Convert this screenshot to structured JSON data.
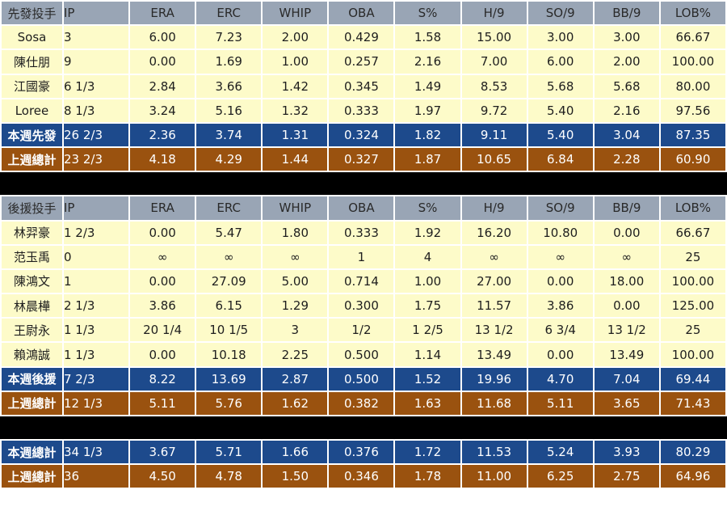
{
  "headers": {
    "starters": [
      "先發投手",
      "IP",
      "ERA",
      "ERC",
      "WHIP",
      "OBA",
      "S%",
      "H/9",
      "SO/9",
      "BB/9",
      "LOB%"
    ],
    "relievers": [
      "後援投手",
      "IP",
      "ERA",
      "ERC",
      "WHIP",
      "OBA",
      "S%",
      "H/9",
      "SO/9",
      "BB/9",
      "LOB%"
    ]
  },
  "starters": {
    "rows": [
      [
        "Sosa",
        "3",
        "6.00",
        "7.23",
        "2.00",
        "0.429",
        "1.58",
        "15.00",
        "3.00",
        "3.00",
        "66.67"
      ],
      [
        "陳仕朋",
        "9",
        "0.00",
        "1.69",
        "1.00",
        "0.257",
        "2.16",
        "7.00",
        "6.00",
        "2.00",
        "100.00"
      ],
      [
        "江國豪",
        "6 1/3",
        "2.84",
        "3.66",
        "1.42",
        "0.345",
        "1.49",
        "8.53",
        "5.68",
        "5.68",
        "80.00"
      ],
      [
        "Loree",
        "8 1/3",
        "3.24",
        "5.16",
        "1.32",
        "0.333",
        "1.97",
        "9.72",
        "5.40",
        "2.16",
        "97.56"
      ]
    ],
    "this_week": [
      "本週先發",
      "26 2/3",
      "2.36",
      "3.74",
      "1.31",
      "0.324",
      "1.82",
      "9.11",
      "5.40",
      "3.04",
      "87.35"
    ],
    "last_week": [
      "上週總計",
      "23 2/3",
      "4.18",
      "4.29",
      "1.44",
      "0.327",
      "1.87",
      "10.65",
      "6.84",
      "2.28",
      "60.90"
    ]
  },
  "relievers": {
    "rows": [
      [
        "林羿豪",
        "1 2/3",
        "0.00",
        "5.47",
        "1.80",
        "0.333",
        "1.92",
        "16.20",
        "10.80",
        "0.00",
        "66.67"
      ],
      [
        "范玉禹",
        "0",
        "∞",
        "∞",
        "∞",
        "1",
        "4",
        "∞",
        "∞",
        "∞",
        "25"
      ],
      [
        "陳鴻文",
        "1",
        "0.00",
        "27.09",
        "5.00",
        "0.714",
        "1.00",
        "27.00",
        "0.00",
        "18.00",
        "100.00"
      ],
      [
        "林晨樺",
        "2 1/3",
        "3.86",
        "6.15",
        "1.29",
        "0.300",
        "1.75",
        "11.57",
        "3.86",
        "0.00",
        "125.00"
      ],
      [
        "王尉永",
        "1 1/3",
        "20 1/4",
        "10 1/5",
        "3",
        "1/2",
        "1 2/5",
        "13 1/2",
        "6 3/4",
        "13 1/2",
        "25"
      ],
      [
        "賴鴻誠",
        "1 1/3",
        "0.00",
        "10.18",
        "2.25",
        "0.500",
        "1.14",
        "13.49",
        "0.00",
        "13.49",
        "100.00"
      ]
    ],
    "this_week": [
      "本週後援",
      "7 2/3",
      "8.22",
      "13.69",
      "2.87",
      "0.500",
      "1.52",
      "19.96",
      "4.70",
      "7.04",
      "69.44"
    ],
    "last_week": [
      "上週總計",
      "12 1/3",
      "5.11",
      "5.76",
      "1.62",
      "0.382",
      "1.63",
      "11.68",
      "5.11",
      "3.65",
      "71.43"
    ]
  },
  "totals": {
    "this_week": [
      "本週總計",
      "34 1/3",
      "3.67",
      "5.71",
      "1.66",
      "0.376",
      "1.72",
      "11.53",
      "5.24",
      "3.93",
      "80.29"
    ],
    "last_week": [
      "上週總計",
      "36",
      "4.50",
      "4.78",
      "1.50",
      "0.346",
      "1.78",
      "11.00",
      "6.25",
      "2.75",
      "64.96"
    ]
  },
  "colors": {
    "header_bg": "#99a5b5",
    "row_bg": "#fdfbc9",
    "this_week_bg": "#1d4a8c",
    "last_week_bg": "#9a520f",
    "separator": "#000000"
  }
}
